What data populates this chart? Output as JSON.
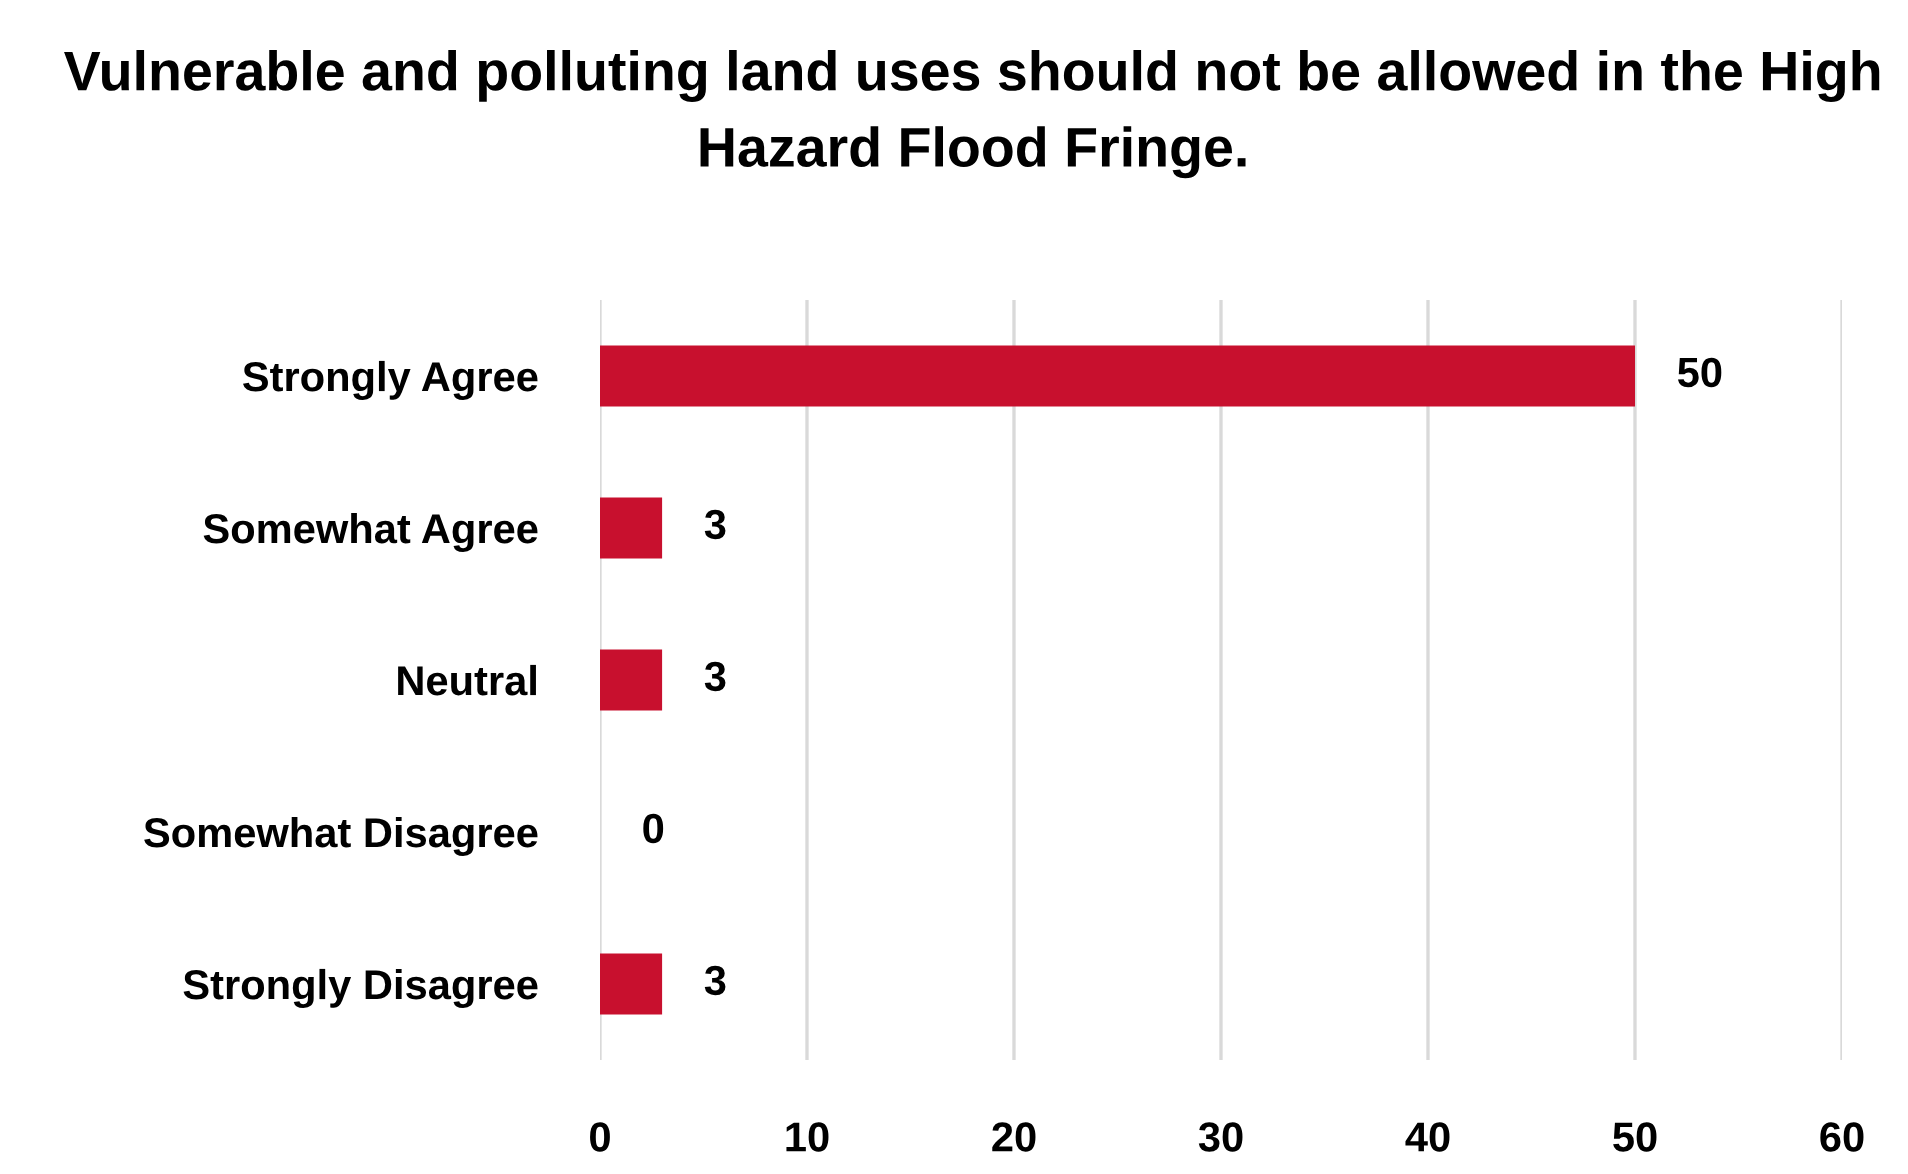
{
  "chart_data": {
    "type": "bar",
    "orientation": "horizontal",
    "title": "Vulnerable and polluting land uses should not be allowed in the High Hazard Flood Fringe.",
    "categories": [
      "Strongly Agree",
      "Somewhat Agree",
      "Neutral",
      "Somewhat Disagree",
      "Strongly Disagree"
    ],
    "values": [
      50,
      3,
      3,
      0,
      3
    ],
    "color": "#c8102e",
    "data_labels": true,
    "xlim": [
      0,
      60
    ],
    "xticks": [
      0,
      10,
      20,
      30,
      40,
      50,
      60
    ],
    "grid": "x",
    "legend": false
  }
}
